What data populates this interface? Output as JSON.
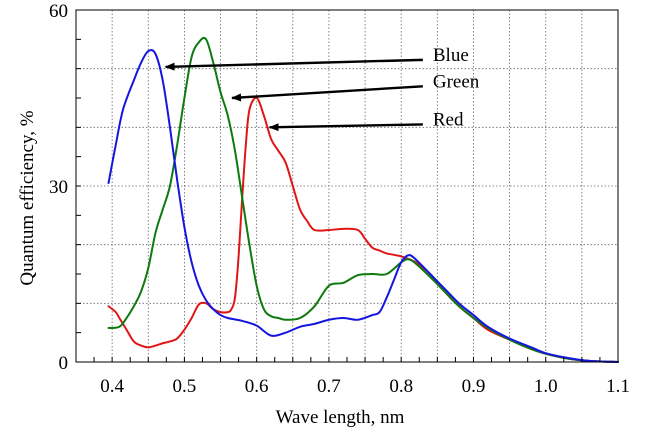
{
  "chart_data": {
    "type": "line",
    "xlabel": "Wave length, nm",
    "ylabel": "Quantum efficiency, %",
    "xlim": [
      0.35,
      1.1
    ],
    "ylim": [
      0,
      60
    ],
    "x_ticks": [
      "0.4",
      "0.5",
      "0.6",
      "0.7",
      "0.8",
      "0.9",
      "1.0",
      "1.1"
    ],
    "x_tick_values": [
      0.4,
      0.5,
      0.6,
      0.7,
      0.8,
      0.9,
      1.0,
      1.1
    ],
    "y_ticks": [
      "0",
      "30",
      "60"
    ],
    "y_tick_values": [
      0,
      30,
      60
    ],
    "grid": true,
    "legend": "none",
    "series": [
      {
        "name": "Blue",
        "color": "#1515e0",
        "x": [
          0.395,
          0.405,
          0.415,
          0.43,
          0.44,
          0.45,
          0.46,
          0.47,
          0.48,
          0.49,
          0.5,
          0.51,
          0.52,
          0.53,
          0.54,
          0.55,
          0.56,
          0.58,
          0.6,
          0.62,
          0.64,
          0.66,
          0.68,
          0.7,
          0.72,
          0.74,
          0.76,
          0.77,
          0.78,
          0.79,
          0.8,
          0.81,
          0.82,
          0.84,
          0.86,
          0.88,
          0.9,
          0.92,
          0.95,
          0.98,
          1.0,
          1.03,
          1.06,
          1.1
        ],
        "y": [
          30.5,
          37,
          43,
          48,
          51,
          53,
          52.5,
          48,
          40,
          31,
          23,
          17,
          13,
          10.5,
          9,
          8,
          7.5,
          7,
          6.2,
          4.5,
          5,
          6,
          6.5,
          7.2,
          7.5,
          7.2,
          8,
          8.5,
          11,
          14,
          17,
          18.2,
          17.5,
          15,
          12.5,
          10,
          8,
          6,
          4,
          2.5,
          1.5,
          0.7,
          0.2,
          0
        ]
      },
      {
        "name": "Green",
        "color": "#0e7a0e",
        "x": [
          0.395,
          0.41,
          0.42,
          0.43,
          0.44,
          0.45,
          0.46,
          0.47,
          0.48,
          0.49,
          0.5,
          0.51,
          0.52,
          0.53,
          0.54,
          0.55,
          0.56,
          0.57,
          0.58,
          0.59,
          0.6,
          0.61,
          0.62,
          0.63,
          0.64,
          0.66,
          0.68,
          0.7,
          0.72,
          0.74,
          0.76,
          0.78,
          0.8,
          0.81,
          0.82,
          0.84,
          0.86,
          0.88,
          0.9,
          0.92,
          0.95,
          0.98,
          1.0,
          1.03,
          1.06,
          1.1
        ],
        "y": [
          5.8,
          6,
          7.5,
          9.5,
          12,
          16,
          22,
          26,
          30,
          37,
          45,
          52,
          54.5,
          55,
          51,
          46,
          42,
          36,
          28,
          20,
          13,
          9,
          7.8,
          7.5,
          7.2,
          7.5,
          9.5,
          13,
          13.5,
          14.8,
          15,
          15,
          17,
          17.5,
          16.8,
          14.5,
          12,
          9.5,
          7.5,
          5.8,
          3.8,
          2.2,
          1.4,
          0.6,
          0.2,
          0
        ]
      },
      {
        "name": "Red",
        "color": "#e01515",
        "x": [
          0.395,
          0.405,
          0.41,
          0.42,
          0.43,
          0.44,
          0.45,
          0.46,
          0.47,
          0.48,
          0.49,
          0.5,
          0.51,
          0.52,
          0.53,
          0.54,
          0.55,
          0.56,
          0.565,
          0.57,
          0.575,
          0.58,
          0.585,
          0.59,
          0.6,
          0.61,
          0.62,
          0.63,
          0.64,
          0.65,
          0.66,
          0.67,
          0.68,
          0.7,
          0.72,
          0.74,
          0.75,
          0.76,
          0.77,
          0.78,
          0.8,
          0.82,
          0.84,
          0.86,
          0.88,
          0.9,
          0.92,
          0.95,
          0.98,
          1.0,
          1.03,
          1.06,
          1.1
        ],
        "y": [
          9.5,
          8.5,
          7.5,
          5.5,
          3.5,
          2.8,
          2.5,
          2.8,
          3.2,
          3.5,
          4,
          5.5,
          7.5,
          9.8,
          10,
          9,
          8.5,
          8.5,
          9,
          11,
          18,
          28,
          37,
          43,
          45,
          42,
          38,
          36,
          34,
          30,
          26,
          24,
          22.5,
          22.5,
          22.7,
          22.5,
          21,
          19.5,
          19,
          18.5,
          18,
          17,
          15,
          12,
          9.5,
          7.5,
          5.5,
          3.8,
          2.2,
          1.4,
          0.6,
          0.2,
          0
        ]
      }
    ],
    "annotations": [
      {
        "text": "Blue",
        "from": [
          0.83,
          51.5
        ],
        "to": [
          0.474,
          50.3
        ]
      },
      {
        "text": "Green",
        "from": [
          0.83,
          47.0
        ],
        "to": [
          0.566,
          45.0
        ]
      },
      {
        "text": "Red",
        "from": [
          0.83,
          40.5
        ],
        "to": [
          0.618,
          40.0
        ]
      }
    ]
  }
}
